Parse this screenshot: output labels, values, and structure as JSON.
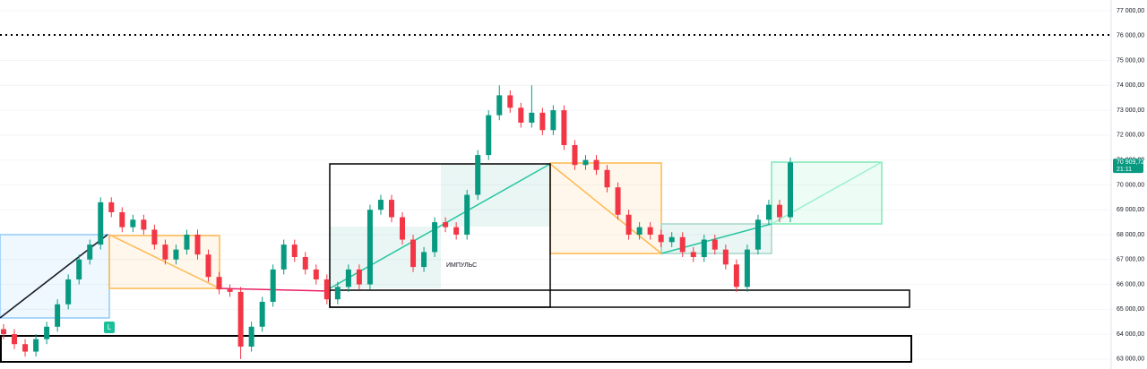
{
  "chart_data": {
    "type": "candlestick",
    "open": [
      64200,
      64000,
      63600,
      63300,
      63800,
      64300,
      65200,
      66200,
      67000,
      67600,
      69300,
      68900,
      68300,
      68600,
      68200,
      67600,
      67000,
      67400,
      68000,
      67200,
      66300,
      65800,
      65700,
      63500,
      64300,
      65300,
      66600,
      67600,
      67100,
      66600,
      66200,
      65400,
      65900,
      66600,
      66000,
      69000,
      69400,
      68700,
      67800,
      66700,
      67300,
      68500,
      68300,
      68000,
      69600,
      71200,
      72800,
      73600,
      73100,
      72500,
      72900,
      72200,
      73000,
      71600,
      70800,
      71000,
      70600,
      69900,
      68800,
      68000,
      68300,
      68000,
      67700,
      67900,
      67300,
      67100,
      67800,
      67400,
      66800,
      65900,
      67400,
      68600,
      69200,
      68700
    ],
    "high": [
      64400,
      64200,
      63800,
      64000,
      64500,
      65400,
      66400,
      67200,
      67800,
      69500,
      69500,
      69100,
      68800,
      68800,
      68400,
      67800,
      67600,
      68200,
      68200,
      67400,
      66500,
      66000,
      65900,
      64500,
      65500,
      66800,
      67800,
      67800,
      67300,
      66800,
      66400,
      66100,
      66800,
      66800,
      69200,
      69600,
      69600,
      68900,
      68000,
      67500,
      68700,
      68700,
      68500,
      69800,
      71400,
      73000,
      74000,
      73800,
      73300,
      74000,
      73100,
      73200,
      73200,
      71800,
      71200,
      71200,
      70800,
      70100,
      69000,
      68500,
      68500,
      68200,
      68100,
      68100,
      67500,
      68000,
      68000,
      67600,
      67000,
      67600,
      68800,
      69400,
      69400,
      71100
    ],
    "low": [
      63800,
      63400,
      63100,
      63100,
      63600,
      64100,
      65000,
      66000,
      66800,
      67400,
      68700,
      68100,
      68100,
      68000,
      67400,
      66800,
      66800,
      67200,
      67000,
      66100,
      65600,
      65500,
      63000,
      63300,
      64100,
      65100,
      66400,
      66900,
      66400,
      66000,
      65200,
      65200,
      65700,
      65800,
      65800,
      68800,
      68500,
      67600,
      66500,
      66500,
      67100,
      68100,
      67800,
      67800,
      69400,
      71000,
      72600,
      72900,
      72300,
      72300,
      72000,
      72000,
      71400,
      70600,
      70600,
      70400,
      69700,
      68600,
      67800,
      67800,
      67800,
      67500,
      67500,
      67100,
      66900,
      66900,
      67200,
      66600,
      65700,
      65700,
      67200,
      68400,
      68500,
      68500
    ],
    "close": [
      64000,
      63600,
      63300,
      63800,
      64300,
      65200,
      66200,
      67000,
      67600,
      69300,
      68900,
      68300,
      68600,
      68200,
      67600,
      67000,
      67400,
      68000,
      67200,
      66300,
      65800,
      65700,
      63500,
      64300,
      65300,
      66600,
      67600,
      67100,
      66600,
      66200,
      65400,
      65900,
      66600,
      66000,
      69000,
      69400,
      68700,
      67800,
      66700,
      67300,
      68500,
      68300,
      68000,
      69600,
      71200,
      72800,
      73600,
      73100,
      72500,
      72900,
      72200,
      73000,
      71600,
      70800,
      71000,
      70600,
      69900,
      68800,
      68000,
      68300,
      68000,
      67700,
      67900,
      67300,
      67100,
      67800,
      67400,
      66800,
      65900,
      67400,
      68600,
      69200,
      68700,
      70900
    ],
    "up_color": "#089981",
    "down_color": "#f23645",
    "ylim": [
      62600,
      77430
    ],
    "yticks": [
      {
        "value": 63000,
        "label": "63 000,00"
      },
      {
        "value": 64000,
        "label": "64 000,00"
      },
      {
        "value": 65000,
        "label": "65 000,00"
      },
      {
        "value": 66000,
        "label": "66 000,00"
      },
      {
        "value": 67000,
        "label": "67 000,00"
      },
      {
        "value": 68000,
        "label": "68 000,00"
      },
      {
        "value": 69000,
        "label": "69 000,00"
      },
      {
        "value": 70000,
        "label": "70 000,00"
      },
      {
        "value": 71000,
        "label": "71 000,00"
      },
      {
        "value": 72000,
        "label": "72 000,00"
      },
      {
        "value": 73000,
        "label": "73 000,00"
      },
      {
        "value": 74000,
        "label": "74 000,00"
      },
      {
        "value": 75000,
        "label": "75 000,00"
      },
      {
        "value": 76000,
        "label": "76 000,00"
      },
      {
        "value": 77000,
        "label": "77 000,00"
      }
    ],
    "grid": true,
    "last_price": {
      "value": 70909.72,
      "label": "70 909,72"
    },
    "countdown": "21:11",
    "annotations": {
      "impulse": "ИМПУЛЬС",
      "marker": "L"
    }
  }
}
